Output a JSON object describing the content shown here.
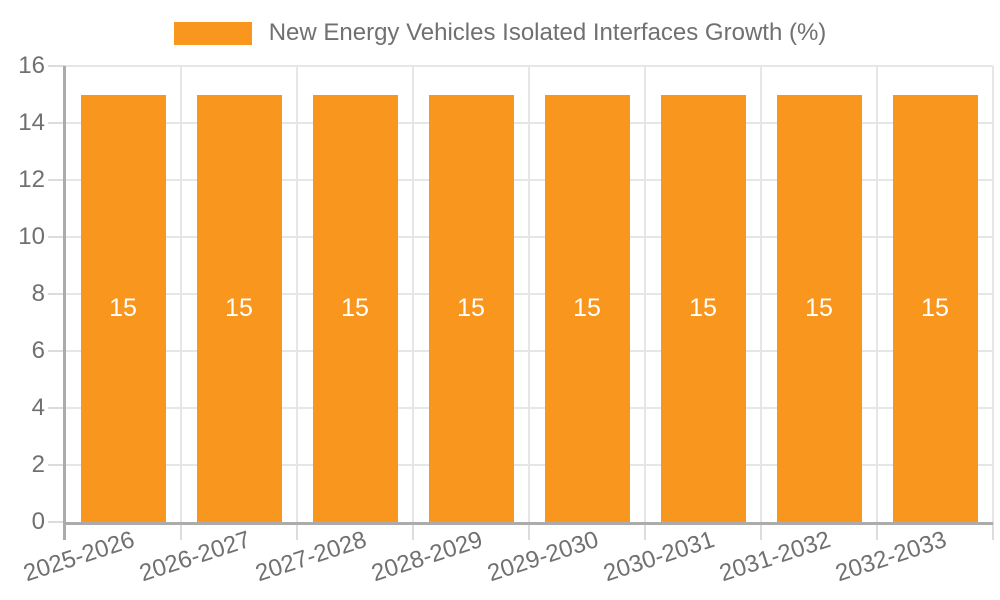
{
  "chart_data": {
    "type": "bar",
    "title": "",
    "xlabel": "",
    "ylabel": "",
    "categories": [
      "2025-2026",
      "2026-2027",
      "2027-2028",
      "2028-2029",
      "2029-2030",
      "2030-2031",
      "2031-2032",
      "2032-2033"
    ],
    "series": [
      {
        "name": "New Energy Vehicles Isolated Interfaces Growth (%)",
        "values": [
          15,
          15,
          15,
          15,
          15,
          15,
          15,
          15
        ],
        "color": "#F8961E"
      }
    ],
    "ylim": [
      0,
      16
    ],
    "yticks": [
      0,
      2,
      4,
      6,
      8,
      10,
      12,
      14,
      16
    ],
    "bar_value_labels_shown": true,
    "grid": true,
    "legend_position": "top-center",
    "x_tick_rotation_deg": -18
  },
  "colors": {
    "bar": "#F8961E",
    "axis_line": "#ABABAB",
    "grid_line": "#E6E6E6",
    "tick_line": "#DCDCDC",
    "text": "#707070",
    "bar_label_text": "#FFFFFF",
    "background": "#FFFFFF"
  }
}
